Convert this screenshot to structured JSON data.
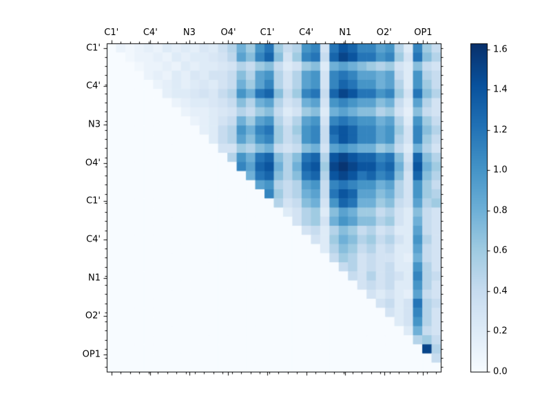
{
  "chart_data": {
    "type": "heatmap",
    "title": "",
    "xlabel": "",
    "ylabel": "",
    "n": 36,
    "vmin": 0.0,
    "vmax": 1.63,
    "axis_labels": [
      "C1'",
      "C4'",
      "N3",
      "O4'",
      "C1'",
      "C4'",
      "N1",
      "O2'",
      "OP1"
    ],
    "label_every": 4,
    "colormap": {
      "name": "Blues",
      "stops": [
        "#f7fbff",
        "#deebf7",
        "#c6dbef",
        "#9ecae1",
        "#6baed6",
        "#4292c6",
        "#2171b5",
        "#08519c",
        "#08306b"
      ]
    },
    "colorbar": {
      "tick_labels": [
        "0.0",
        "0.2",
        "0.4",
        "0.6",
        "0.8",
        "1.0",
        "1.2",
        "1.4",
        "1.6"
      ],
      "tick_values": [
        0.0,
        0.2,
        0.4,
        0.6,
        0.8,
        1.0,
        1.2,
        1.4,
        1.6
      ]
    },
    "matrix": [
      [
        0,
        0.1,
        0.05,
        0.1,
        0.15,
        0.1,
        0.2,
        0.15,
        0.2,
        0.15,
        0.25,
        0.2,
        0.35,
        0.5,
        0.8,
        0.6,
        1.0,
        1.2,
        0.6,
        0.4,
        0.5,
        1.0,
        1.1,
        0.3,
        1.2,
        1.4,
        1.3,
        1.1,
        1.1,
        0.9,
        1.0,
        0.5,
        0.2,
        1.1,
        0.6,
        0.4
      ],
      [
        0,
        0,
        0.05,
        0.1,
        0.1,
        0.15,
        0.1,
        0.2,
        0.15,
        0.2,
        0.2,
        0.25,
        0.3,
        0.45,
        0.9,
        0.7,
        1.1,
        1.3,
        0.7,
        0.3,
        0.6,
        1.1,
        1.2,
        0.4,
        1.3,
        1.5,
        1.4,
        1.2,
        1.2,
        1.0,
        1.1,
        0.6,
        0.3,
        1.2,
        0.7,
        0.5
      ],
      [
        0,
        0,
        0,
        0.05,
        0.1,
        0.1,
        0.15,
        0.1,
        0.2,
        0.15,
        0.2,
        0.2,
        0.25,
        0.3,
        0.5,
        0.4,
        0.6,
        0.7,
        0.4,
        0.2,
        0.3,
        0.6,
        0.7,
        0.2,
        0.8,
        0.9,
        0.8,
        0.7,
        0.6,
        0.5,
        0.6,
        0.3,
        0.2,
        0.7,
        0.4,
        0.3
      ],
      [
        0,
        0,
        0,
        0,
        0.1,
        0.15,
        0.1,
        0.2,
        0.15,
        0.25,
        0.2,
        0.3,
        0.3,
        0.4,
        0.7,
        0.5,
        0.9,
        1.0,
        0.5,
        0.3,
        0.5,
        0.9,
        1.0,
        0.3,
        1.1,
        1.2,
        1.1,
        0.9,
        0.9,
        0.8,
        0.9,
        0.4,
        0.2,
        1.0,
        0.5,
        0.4
      ],
      [
        0,
        0,
        0,
        0,
        0,
        0.1,
        0.15,
        0.2,
        0.15,
        0.2,
        0.25,
        0.2,
        0.3,
        0.4,
        0.8,
        0.6,
        0.9,
        1.1,
        0.5,
        0.3,
        0.5,
        0.9,
        1.0,
        0.3,
        1.1,
        1.3,
        1.2,
        1.0,
        1.0,
        0.8,
        0.9,
        0.5,
        0.2,
        1.0,
        0.6,
        0.4
      ],
      [
        0,
        0,
        0,
        0,
        0,
        0,
        0.15,
        0.2,
        0.2,
        0.25,
        0.3,
        0.25,
        0.4,
        0.5,
        1.0,
        0.8,
        1.2,
        1.3,
        0.7,
        0.4,
        0.6,
        1.1,
        1.2,
        0.4,
        1.3,
        1.5,
        1.4,
        1.2,
        1.2,
        1.0,
        1.1,
        0.6,
        0.3,
        1.2,
        0.7,
        0.5
      ],
      [
        0,
        0,
        0,
        0,
        0,
        0,
        0,
        0.1,
        0.15,
        0.2,
        0.2,
        0.25,
        0.3,
        0.4,
        0.7,
        0.5,
        0.8,
        0.9,
        0.5,
        0.3,
        0.4,
        0.8,
        0.9,
        0.3,
        1.0,
        1.1,
        1.0,
        0.9,
        0.9,
        0.7,
        0.8,
        0.4,
        0.2,
        0.9,
        0.5,
        0.3
      ],
      [
        0,
        0,
        0,
        0,
        0,
        0,
        0,
        0,
        0.1,
        0.15,
        0.15,
        0.2,
        0.25,
        0.3,
        0.5,
        0.4,
        0.6,
        0.7,
        0.4,
        0.2,
        0.3,
        0.6,
        0.7,
        0.2,
        0.8,
        0.9,
        0.8,
        0.7,
        0.7,
        0.5,
        0.6,
        0.3,
        0.15,
        0.7,
        0.4,
        0.3
      ],
      [
        0,
        0,
        0,
        0,
        0,
        0,
        0,
        0,
        0,
        0.1,
        0.15,
        0.2,
        0.3,
        0.4,
        0.8,
        0.6,
        0.9,
        1.0,
        0.5,
        0.3,
        0.5,
        0.9,
        1.0,
        0.3,
        1.1,
        1.2,
        1.1,
        1.0,
        1.0,
        0.8,
        0.9,
        0.5,
        0.2,
        1.0,
        0.6,
        0.4
      ],
      [
        0,
        0,
        0,
        0,
        0,
        0,
        0,
        0,
        0,
        0,
        0.15,
        0.2,
        0.4,
        0.5,
        1.0,
        0.8,
        1.1,
        1.2,
        0.6,
        0.4,
        0.6,
        1.0,
        1.1,
        0.4,
        1.3,
        1.4,
        1.3,
        1.1,
        1.1,
        0.9,
        1.0,
        0.6,
        0.3,
        1.1,
        0.7,
        0.5
      ],
      [
        0,
        0,
        0,
        0,
        0,
        0,
        0,
        0,
        0,
        0,
        0,
        0.2,
        0.4,
        0.5,
        0.9,
        0.7,
        1.0,
        1.1,
        0.6,
        0.4,
        0.5,
        1.0,
        1.1,
        0.4,
        1.2,
        1.4,
        1.3,
        1.1,
        1.1,
        0.9,
        1.0,
        0.5,
        0.3,
        1.1,
        0.6,
        0.4
      ],
      [
        0,
        0,
        0,
        0,
        0,
        0,
        0,
        0,
        0,
        0,
        0,
        0,
        0.3,
        0.3,
        0.6,
        0.5,
        0.7,
        0.8,
        0.4,
        0.3,
        0.4,
        0.7,
        0.8,
        0.3,
        0.9,
        1.0,
        0.9,
        0.8,
        0.8,
        0.6,
        0.7,
        0.4,
        0.2,
        0.8,
        0.5,
        0.3
      ],
      [
        0,
        0,
        0,
        0,
        0,
        0,
        0,
        0,
        0,
        0,
        0,
        0,
        0,
        0.5,
        1.0,
        0.8,
        1.2,
        1.3,
        0.7,
        0.5,
        0.7,
        1.2,
        1.3,
        0.5,
        1.4,
        1.5,
        1.4,
        1.3,
        1.3,
        1.1,
        1.2,
        0.7,
        0.3,
        1.3,
        0.7,
        0.5
      ],
      [
        0,
        0,
        0,
        0,
        0,
        0,
        0,
        0,
        0,
        0,
        0,
        0,
        0,
        0,
        1.1,
        0.9,
        1.3,
        1.4,
        0.8,
        0.5,
        0.8,
        1.3,
        1.4,
        0.6,
        1.5,
        1.6,
        1.5,
        1.4,
        1.4,
        1.2,
        1.3,
        0.8,
        0.4,
        1.4,
        0.8,
        0.6
      ],
      [
        0,
        0,
        0,
        0,
        0,
        0,
        0,
        0,
        0,
        0,
        0,
        0,
        0,
        0,
        0,
        0.8,
        1.2,
        1.3,
        0.7,
        0.5,
        0.7,
        1.2,
        1.3,
        0.5,
        1.4,
        1.5,
        1.4,
        1.2,
        1.3,
        1.1,
        1.2,
        0.7,
        0.3,
        1.3,
        0.7,
        0.5
      ],
      [
        0,
        0,
        0,
        0,
        0,
        0,
        0,
        0,
        0,
        0,
        0,
        0,
        0,
        0,
        0,
        0,
        0.9,
        1.0,
        0.5,
        0.4,
        0.5,
        0.9,
        1.0,
        0.4,
        1.1,
        1.2,
        1.1,
        1.0,
        1.0,
        0.8,
        0.9,
        0.5,
        0.3,
        1.0,
        0.6,
        0.4
      ],
      [
        0,
        0,
        0,
        0,
        0,
        0,
        0,
        0,
        0,
        0,
        0,
        0,
        0,
        0,
        0,
        0,
        0,
        1.1,
        0.6,
        0.4,
        0.5,
        0.8,
        0.9,
        0.4,
        1.2,
        1.4,
        1.3,
        0.9,
        0.9,
        0.7,
        0.8,
        0.5,
        0.3,
        1.0,
        0.6,
        0.5
      ],
      [
        0,
        0,
        0,
        0,
        0,
        0,
        0,
        0,
        0,
        0,
        0,
        0,
        0,
        0,
        0,
        0,
        0,
        0,
        0.5,
        0.3,
        0.4,
        0.7,
        0.8,
        0.3,
        1.0,
        1.3,
        1.2,
        0.8,
        0.8,
        0.6,
        0.7,
        0.4,
        0.3,
        0.9,
        0.5,
        0.6
      ],
      [
        0,
        0,
        0,
        0,
        0,
        0,
        0,
        0,
        0,
        0,
        0,
        0,
        0,
        0,
        0,
        0,
        0,
        0,
        0,
        0.2,
        0.3,
        0.5,
        0.6,
        0.2,
        0.7,
        0.9,
        0.8,
        0.6,
        0.6,
        0.4,
        0.5,
        0.3,
        0.2,
        0.7,
        0.4,
        0.3
      ],
      [
        0,
        0,
        0,
        0,
        0,
        0,
        0,
        0,
        0,
        0,
        0,
        0,
        0,
        0,
        0,
        0,
        0,
        0,
        0,
        0,
        0.3,
        0.5,
        0.6,
        0.3,
        0.8,
        1.0,
        0.9,
        0.7,
        0.7,
        0.5,
        0.6,
        0.3,
        0.2,
        0.8,
        0.4,
        0.3
      ],
      [
        0,
        0,
        0,
        0,
        0,
        0,
        0,
        0,
        0,
        0,
        0,
        0,
        0,
        0,
        0,
        0,
        0,
        0,
        0,
        0,
        0,
        0.3,
        0.4,
        0.2,
        0.5,
        0.7,
        0.6,
        0.4,
        0.5,
        0.3,
        0.4,
        0.2,
        0.2,
        0.9,
        0.4,
        0.3
      ],
      [
        0,
        0,
        0,
        0,
        0,
        0,
        0,
        0,
        0,
        0,
        0,
        0,
        0,
        0,
        0,
        0,
        0,
        0,
        0,
        0,
        0,
        0,
        0.3,
        0.2,
        0.6,
        0.8,
        0.7,
        0.5,
        0.6,
        0.4,
        0.5,
        0.3,
        0.2,
        1.0,
        0.5,
        0.3
      ],
      [
        0,
        0,
        0,
        0,
        0,
        0,
        0,
        0,
        0,
        0,
        0,
        0,
        0,
        0,
        0,
        0,
        0,
        0,
        0,
        0,
        0,
        0,
        0,
        0.2,
        0.5,
        0.7,
        0.6,
        0.4,
        0.5,
        0.3,
        0.4,
        0.2,
        0.2,
        0.9,
        0.4,
        0.3
      ],
      [
        0,
        0,
        0,
        0,
        0,
        0,
        0,
        0,
        0,
        0,
        0,
        0,
        0,
        0,
        0,
        0,
        0,
        0,
        0,
        0,
        0,
        0,
        0,
        0,
        0.4,
        0.6,
        0.5,
        0.3,
        0.4,
        0.3,
        0.3,
        0.2,
        0.15,
        0.8,
        0.4,
        0.3
      ],
      [
        0,
        0,
        0,
        0,
        0,
        0,
        0,
        0,
        0,
        0,
        0,
        0,
        0,
        0,
        0,
        0,
        0,
        0,
        0,
        0,
        0,
        0,
        0,
        0,
        0,
        0.4,
        0.5,
        0.3,
        0.4,
        0.3,
        0.4,
        0.2,
        0.2,
        1.0,
        0.5,
        0.3
      ],
      [
        0,
        0,
        0,
        0,
        0,
        0,
        0,
        0,
        0,
        0,
        0,
        0,
        0,
        0,
        0,
        0,
        0,
        0,
        0,
        0,
        0,
        0,
        0,
        0,
        0,
        0,
        0.4,
        0.3,
        0.5,
        0.3,
        0.4,
        0.3,
        0.2,
        1.1,
        0.5,
        0.4
      ],
      [
        0,
        0,
        0,
        0,
        0,
        0,
        0,
        0,
        0,
        0,
        0,
        0,
        0,
        0,
        0,
        0,
        0,
        0,
        0,
        0,
        0,
        0,
        0,
        0,
        0,
        0,
        0,
        0.3,
        0.4,
        0.3,
        0.4,
        0.2,
        0.2,
        1.0,
        0.5,
        0.3
      ],
      [
        0,
        0,
        0,
        0,
        0,
        0,
        0,
        0,
        0,
        0,
        0,
        0,
        0,
        0,
        0,
        0,
        0,
        0,
        0,
        0,
        0,
        0,
        0,
        0,
        0,
        0,
        0,
        0,
        0.3,
        0.2,
        0.3,
        0.2,
        0.15,
        0.9,
        0.4,
        0.3
      ],
      [
        0,
        0,
        0,
        0,
        0,
        0,
        0,
        0,
        0,
        0,
        0,
        0,
        0,
        0,
        0,
        0,
        0,
        0,
        0,
        0,
        0,
        0,
        0,
        0,
        0,
        0,
        0,
        0,
        0,
        0.3,
        0.4,
        0.2,
        0.3,
        1.2,
        0.5,
        0.4
      ],
      [
        0,
        0,
        0,
        0,
        0,
        0,
        0,
        0,
        0,
        0,
        0,
        0,
        0,
        0,
        0,
        0,
        0,
        0,
        0,
        0,
        0,
        0,
        0,
        0,
        0,
        0,
        0,
        0,
        0,
        0,
        0.3,
        0.2,
        0.3,
        1.1,
        0.5,
        0.3
      ],
      [
        0,
        0,
        0,
        0,
        0,
        0,
        0,
        0,
        0,
        0,
        0,
        0,
        0,
        0,
        0,
        0,
        0,
        0,
        0,
        0,
        0,
        0,
        0,
        0,
        0,
        0,
        0,
        0,
        0,
        0,
        0,
        0.2,
        0.3,
        1.0,
        0.5,
        0.3
      ],
      [
        0,
        0,
        0,
        0,
        0,
        0,
        0,
        0,
        0,
        0,
        0,
        0,
        0,
        0,
        0,
        0,
        0,
        0,
        0,
        0,
        0,
        0,
        0,
        0,
        0,
        0,
        0,
        0,
        0,
        0,
        0,
        0,
        0.2,
        0.8,
        0.4,
        0.3
      ],
      [
        0,
        0,
        0,
        0,
        0,
        0,
        0,
        0,
        0,
        0,
        0,
        0,
        0,
        0,
        0,
        0,
        0,
        0,
        0,
        0,
        0,
        0,
        0,
        0,
        0,
        0,
        0,
        0,
        0,
        0,
        0,
        0,
        0,
        0.5,
        0.6,
        0.4
      ],
      [
        0,
        0,
        0,
        0,
        0,
        0,
        0,
        0,
        0,
        0,
        0,
        0,
        0,
        0,
        0,
        0,
        0,
        0,
        0,
        0,
        0,
        0,
        0,
        0,
        0,
        0,
        0,
        0,
        0,
        0,
        0,
        0,
        0,
        0,
        1.5,
        0.5
      ],
      [
        0,
        0,
        0,
        0,
        0,
        0,
        0,
        0,
        0,
        0,
        0,
        0,
        0,
        0,
        0,
        0,
        0,
        0,
        0,
        0,
        0,
        0,
        0,
        0,
        0,
        0,
        0,
        0,
        0,
        0,
        0,
        0,
        0,
        0,
        0,
        0.4
      ],
      [
        0,
        0,
        0,
        0,
        0,
        0,
        0,
        0,
        0,
        0,
        0,
        0,
        0,
        0,
        0,
        0,
        0,
        0,
        0,
        0,
        0,
        0,
        0,
        0,
        0,
        0,
        0,
        0,
        0,
        0,
        0,
        0,
        0,
        0,
        0,
        0
      ]
    ]
  },
  "colors": {
    "frame": "#000000",
    "background": "#ffffff",
    "text": "#000000"
  }
}
